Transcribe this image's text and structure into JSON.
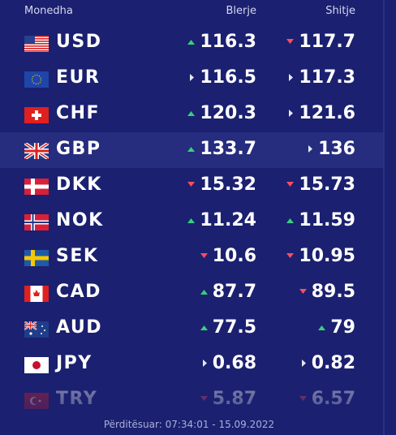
{
  "header": {
    "currency": "Monedha",
    "buy": "Blerje",
    "sell": "Shitje"
  },
  "table": {
    "rows": [
      {
        "code": "USD",
        "buy": "116.3",
        "buy_trend": "up",
        "sell": "117.7",
        "sell_trend": "down"
      },
      {
        "code": "EUR",
        "buy": "116.5",
        "buy_trend": "flat",
        "sell": "117.3",
        "sell_trend": "flat"
      },
      {
        "code": "CHF",
        "buy": "120.3",
        "buy_trend": "up",
        "sell": "121.6",
        "sell_trend": "flat"
      },
      {
        "code": "GBP",
        "buy": "133.7",
        "buy_trend": "up",
        "sell": "136",
        "sell_trend": "flat"
      },
      {
        "code": "DKK",
        "buy": "15.32",
        "buy_trend": "down",
        "sell": "15.73",
        "sell_trend": "down"
      },
      {
        "code": "NOK",
        "buy": "11.24",
        "buy_trend": "up",
        "sell": "11.59",
        "sell_trend": "up"
      },
      {
        "code": "SEK",
        "buy": "10.6",
        "buy_trend": "down",
        "sell": "10.95",
        "sell_trend": "down"
      },
      {
        "code": "CAD",
        "buy": "87.7",
        "buy_trend": "up",
        "sell": "89.5",
        "sell_trend": "down"
      },
      {
        "code": "AUD",
        "buy": "77.5",
        "buy_trend": "up",
        "sell": "79",
        "sell_trend": "up"
      },
      {
        "code": "JPY",
        "buy": "0.68",
        "buy_trend": "flat",
        "sell": "0.82",
        "sell_trend": "flat"
      },
      {
        "code": "TRY",
        "buy": "5.87",
        "buy_trend": "down",
        "sell": "6.57",
        "sell_trend": "down"
      }
    ]
  },
  "footer": {
    "updated": "Përditësuar: 07:34:01 - 15.09.2022"
  }
}
